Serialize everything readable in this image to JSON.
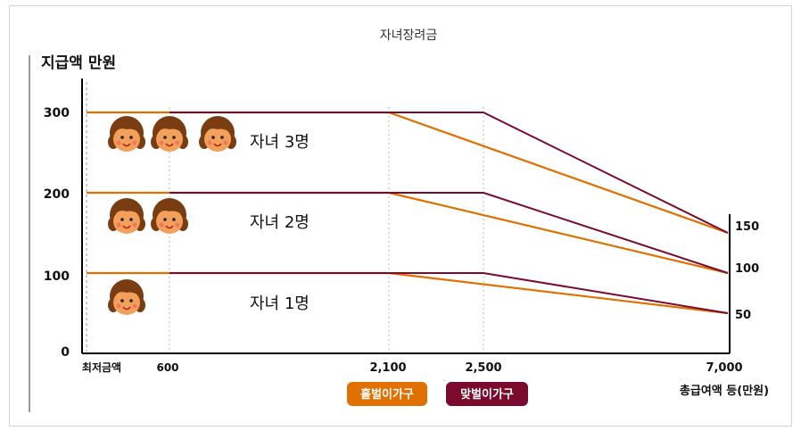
{
  "chart_data": {
    "type": "line",
    "title": "자녀장려금",
    "ylabel": "지급액 만원",
    "xlabel": "총급여액 등(만원)",
    "x_tick_labels": [
      "최저금액",
      "600",
      "2,100",
      "2,500",
      "7,000"
    ],
    "y_tick_labels": [
      "0",
      "100",
      "200",
      "300"
    ],
    "right_tick_labels": [
      "50",
      "100",
      "150"
    ],
    "ylim": [
      0,
      350
    ],
    "legend": {
      "position": "bottom",
      "items": [
        {
          "name": "홑벌이가구",
          "color": "#e07000"
        },
        {
          "name": "맞벌이가구",
          "color": "#7a0a2e"
        }
      ]
    },
    "annotations": [
      "자녀 3명",
      "자녀 2명",
      "자녀 1명"
    ],
    "children_icons": [
      3,
      2,
      1
    ],
    "series": [
      {
        "legend": "홑벌이가구",
        "color": "#e07000",
        "group": 3,
        "points": [
          [
            0,
            300
          ],
          [
            2100,
            300
          ],
          [
            7000,
            150
          ]
        ]
      },
      {
        "legend": "맞벌이가구",
        "color": "#7a0a2e",
        "group": 3,
        "points": [
          [
            600,
            300
          ],
          [
            2500,
            300
          ],
          [
            7000,
            150
          ]
        ]
      },
      {
        "legend": "홑벌이가구",
        "color": "#e07000",
        "group": 2,
        "points": [
          [
            0,
            200
          ],
          [
            2100,
            200
          ],
          [
            7000,
            100
          ]
        ]
      },
      {
        "legend": "맞벌이가구",
        "color": "#7a0a2e",
        "group": 2,
        "points": [
          [
            600,
            200
          ],
          [
            2500,
            200
          ],
          [
            7000,
            100
          ]
        ]
      },
      {
        "legend": "홑벌이가구",
        "color": "#e07000",
        "group": 1,
        "points": [
          [
            0,
            100
          ],
          [
            2100,
            100
          ],
          [
            7000,
            50
          ]
        ]
      },
      {
        "legend": "맞벌이가구",
        "color": "#7a0a2e",
        "group": 1,
        "points": [
          [
            600,
            100
          ],
          [
            2500,
            100
          ],
          [
            7000,
            50
          ]
        ]
      }
    ]
  }
}
